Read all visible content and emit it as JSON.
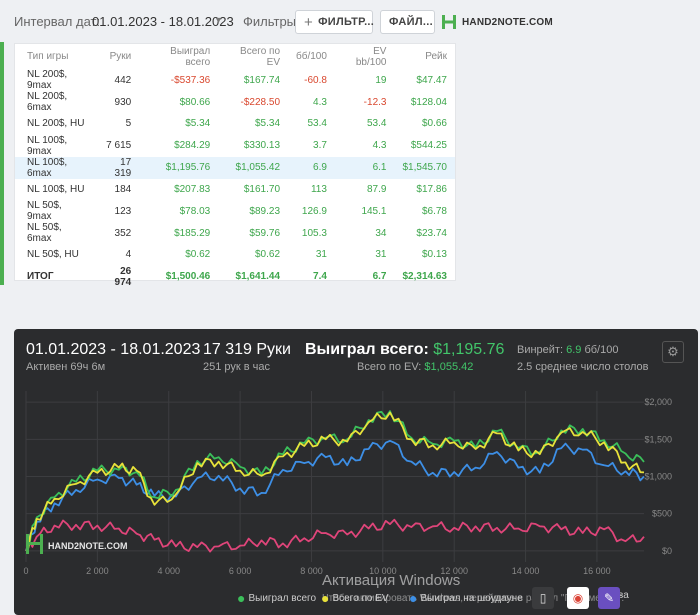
{
  "filter": {
    "interval_label": "Интервал дат:",
    "date_range": "01.01.2023 - 18.01.2023",
    "filters_label": "Фильтры:",
    "filter_button": "ФИЛЬТР...",
    "file_button": "ФАЙЛ...",
    "logo": "HAND2NOTE.COM"
  },
  "table": {
    "headers": [
      "Тип игры",
      "Руки",
      "Выиграл всего",
      "Всего по EV",
      "бб/100",
      "EV bb/100",
      "Рейк"
    ],
    "rows": [
      [
        "NL 200$, 9max",
        "442",
        "-$537.36",
        "$167.74",
        "-60.8",
        "19",
        "$47.47"
      ],
      [
        "NL 200$, 6max",
        "930",
        "$80.66",
        "-$228.50",
        "4.3",
        "-12.3",
        "$128.04"
      ],
      [
        "NL 200$, HU",
        "5",
        "$5.34",
        "$5.34",
        "53.4",
        "53.4",
        "$0.66"
      ],
      [
        "NL 100$, 9max",
        "7 615",
        "$284.29",
        "$330.13",
        "3.7",
        "4.3",
        "$544.25"
      ],
      [
        "NL 100$, 6max",
        "17 319",
        "$1,195.76",
        "$1,055.42",
        "6.9",
        "6.1",
        "$1,545.70"
      ],
      [
        "NL 100$, HU",
        "184",
        "$207.83",
        "$161.70",
        "113",
        "87.9",
        "$17.86"
      ],
      [
        "NL 50$, 9max",
        "123",
        "$78.03",
        "$89.23",
        "126.9",
        "145.1",
        "$6.78"
      ],
      [
        "NL 50$, 6max",
        "352",
        "$185.29",
        "$59.76",
        "105.3",
        "34",
        "$23.74"
      ],
      [
        "NL 50$, HU",
        "4",
        "$0.62",
        "$0.62",
        "31",
        "31",
        "$0.13"
      ]
    ],
    "total": [
      "ИТОГ",
      "26 974",
      "$1,500.46",
      "$1,641.44",
      "7.4",
      "6.7",
      "$2,314.63"
    ]
  },
  "summary": {
    "date_range": "01.01.2023 - 18.01.2023",
    "active": "Активен 69ч 6м",
    "hands": "17 319 Руки",
    "hands_per_hour": "251 рук в час",
    "won_label": "Выиграл всего:",
    "won_value": "$1,195.76",
    "ev_label": "Всего по EV:",
    "ev_value": "$1,055.42",
    "winrate_label": "Винрейт:",
    "winrate_value": "6.9",
    "winrate_unit": "бб/100",
    "tables": "2.5 среднее число столов",
    "logo": "HAND2NOTE.COM"
  },
  "legend": {
    "won": "Выиграл всего",
    "ev": "Всего по EV",
    "showdown": "Выиграл на шоудауне",
    "nonshowdown": "ва"
  },
  "watermark": {
    "title": "Активация Windows",
    "subtitle": "Чтобы активировать Windows, перейдите в раздел \"Параметры\"."
  },
  "colors": {
    "won": "#3bbf5a",
    "ev": "#e8e23a",
    "showdown": "#3d8fe6",
    "nonshowdown": "#e0457a",
    "positive": "#3ea64c",
    "negative": "#d9482f"
  },
  "chart_data": {
    "type": "line",
    "x_ticks": [
      "0",
      "2 000",
      "4 000",
      "6 000",
      "8 000",
      "10 000",
      "12 000",
      "14 000",
      "16 000"
    ],
    "y_ticks": [
      "$0",
      "$500",
      "$1,000",
      "$1,500",
      "$2,000"
    ],
    "xlim": [
      0,
      17319
    ],
    "ylim": [
      -150,
      2150
    ],
    "grid": true,
    "x": [
      0,
      300,
      800,
      1400,
      2000,
      2600,
      3100,
      3600,
      4200,
      4800,
      5400,
      6000,
      6600,
      7200,
      7800,
      8400,
      9000,
      9600,
      10200,
      10800,
      11400,
      12000,
      12600,
      13200,
      13800,
      14400,
      15000,
      15600,
      16200,
      16800,
      17319
    ],
    "series": [
      {
        "name": "Выиграл всего",
        "values": [
          0,
          450,
          720,
          930,
          1080,
          1090,
          1060,
          720,
          820,
          1210,
          1260,
          1130,
          1030,
          1300,
          1450,
          1520,
          1500,
          1760,
          1880,
          1520,
          1440,
          1480,
          1390,
          1610,
          1380,
          1330,
          1620,
          1640,
          1490,
          1310,
          1196
        ]
      },
      {
        "name": "Всего по EV",
        "values": [
          0,
          430,
          700,
          900,
          1050,
          1120,
          1080,
          620,
          760,
          1180,
          1200,
          1080,
          1010,
          1270,
          1410,
          1500,
          1470,
          1730,
          1860,
          1500,
          1420,
          1460,
          1370,
          1580,
          1350,
          1300,
          1590,
          1600,
          1460,
          1190,
          1055
        ]
      },
      {
        "name": "Выиграл на шоудауне",
        "values": [
          0,
          390,
          640,
          820,
          960,
          980,
          890,
          740,
          730,
          980,
          1010,
          840,
          780,
          1090,
          1180,
          1260,
          1150,
          1370,
          1480,
          1200,
          1050,
          1060,
          1120,
          1330,
          1120,
          1050,
          1380,
          1360,
          1150,
          1070,
          1000
        ]
      },
      {
        "name": "Выиграл не на шоудауне",
        "values": [
          0,
          190,
          340,
          350,
          340,
          300,
          230,
          150,
          60,
          50,
          60,
          70,
          140,
          100,
          170,
          240,
          220,
          300,
          360,
          320,
          330,
          310,
          330,
          310,
          300,
          330,
          290,
          240,
          290,
          130,
          190
        ]
      }
    ]
  }
}
